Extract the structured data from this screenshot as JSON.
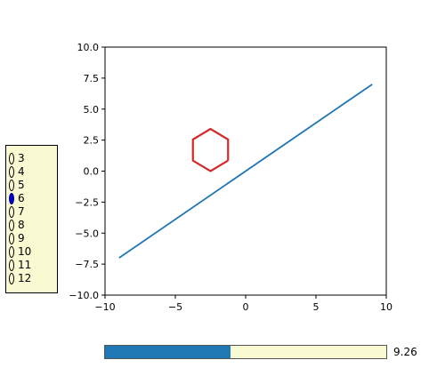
{
  "chart_data": {
    "type": "line",
    "xlim": [
      -10,
      10
    ],
    "ylim": [
      -10,
      10
    ],
    "xticks": [
      "−10",
      "−5",
      "0",
      "5",
      "10"
    ],
    "yticks": [
      "10.0",
      "7.5",
      "5.0",
      "2.5",
      "0.0",
      "−2.5",
      "−5.0",
      "−7.5",
      "−10.0"
    ],
    "series": [
      {
        "color": "#1f77b4",
        "x": [
          -9,
          9
        ],
        "y": [
          -7,
          7
        ]
      },
      {
        "color": "#d62728",
        "x": [
          -1.25,
          -2.5,
          -3.75,
          -3.75,
          -2.5,
          -1.25,
          -1.25
        ],
        "y": [
          0.85,
          0,
          0.85,
          2.55,
          3.4,
          2.55,
          0.85
        ]
      }
    ]
  },
  "radio": {
    "options": [
      "3",
      "4",
      "5",
      "6",
      "7",
      "8",
      "9",
      "10",
      "11",
      "12"
    ],
    "selected": "6",
    "active_color": "#0000cd",
    "background": "#fafad2"
  },
  "slider": {
    "value": 9.26,
    "value_label": "9.26",
    "fill_fraction": 0.445,
    "fill_color": "#1f77b4",
    "background": "#fafad2"
  }
}
